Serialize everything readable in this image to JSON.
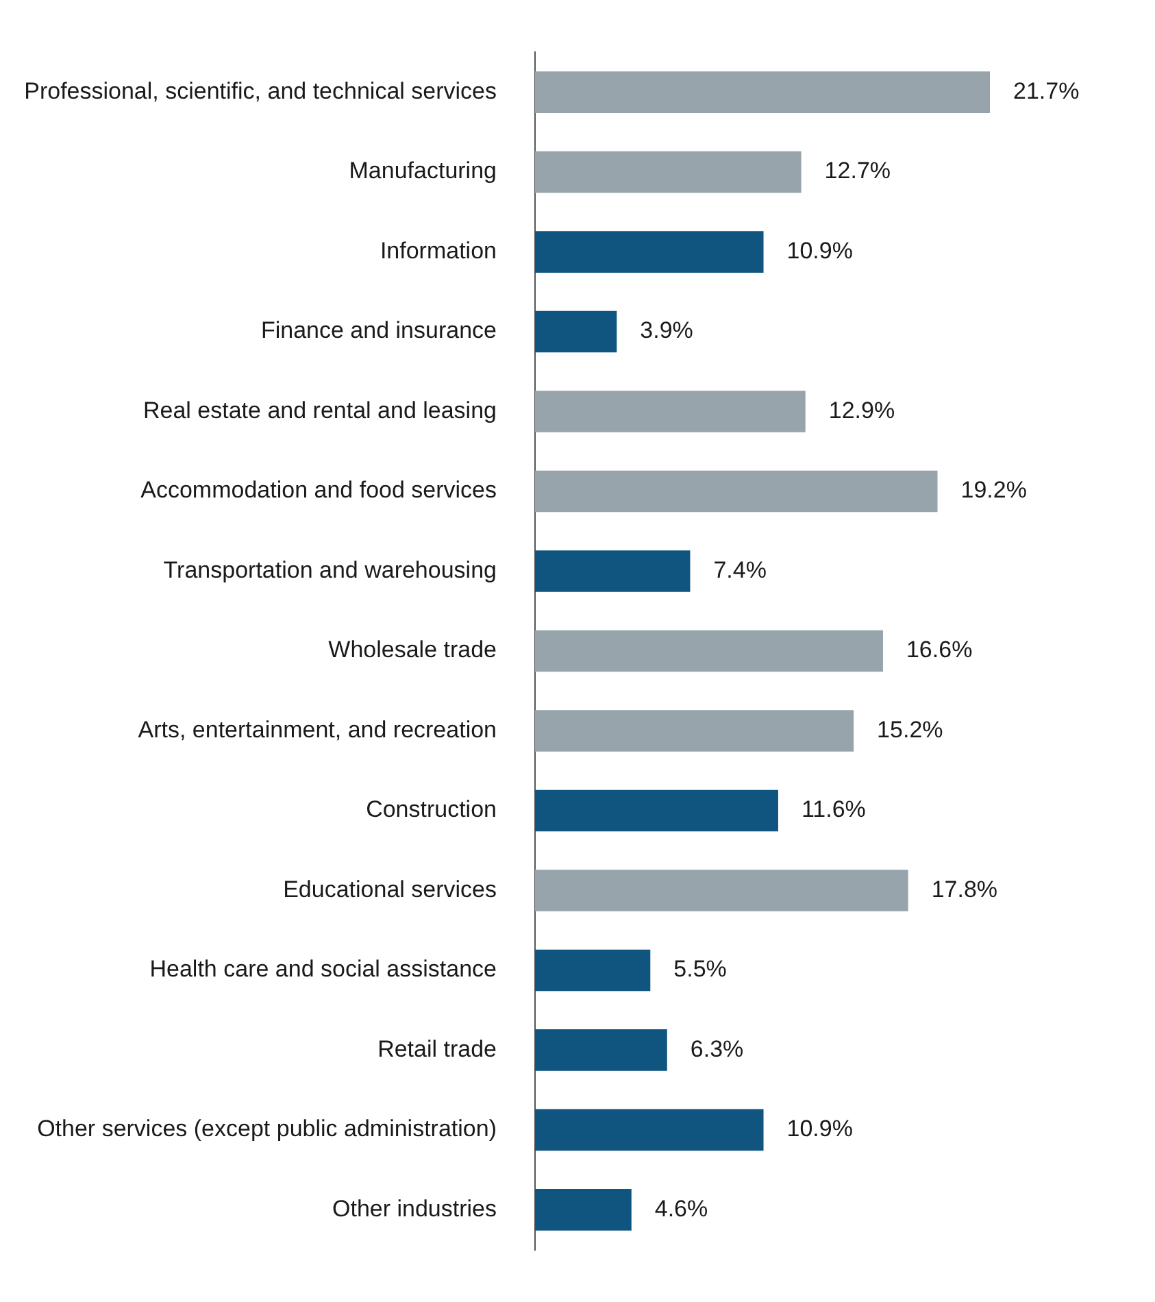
{
  "chart_data": {
    "type": "bar",
    "orientation": "horizontal",
    "categories": [
      "Professional, scientific, and technical services",
      "Manufacturing",
      "Information",
      "Finance and insurance",
      "Real estate and rental and leasing",
      "Accommodation and food services",
      "Transportation and warehousing",
      "Wholesale trade",
      "Arts, entertainment, and recreation",
      "Construction",
      "Educational services",
      "Health care and social assistance",
      "Retail trade",
      "Other services (except public administration)",
      "Other industries"
    ],
    "values": [
      21.7,
      12.7,
      10.9,
      3.9,
      12.9,
      19.2,
      7.4,
      16.6,
      15.2,
      11.6,
      17.8,
      5.5,
      6.3,
      10.9,
      4.6
    ],
    "colors": [
      "#97a4ab",
      "#97a4ab",
      "#0f5580",
      "#0f5580",
      "#97a4ab",
      "#97a4ab",
      "#0f5580",
      "#97a4ab",
      "#97a4ab",
      "#0f5580",
      "#97a4ab",
      "#0f5580",
      "#0f5580",
      "#0f5580",
      "#0f5580"
    ],
    "value_labels": [
      "21.7%",
      "12.7%",
      "10.9%",
      "3.9%",
      "12.9%",
      "19.2%",
      "7.4%",
      "16.6%",
      "15.2%",
      "11.6%",
      "17.8%",
      "5.5%",
      "6.3%",
      "10.9%",
      "4.6%"
    ],
    "tick_labels": "y",
    "legend": false
  }
}
